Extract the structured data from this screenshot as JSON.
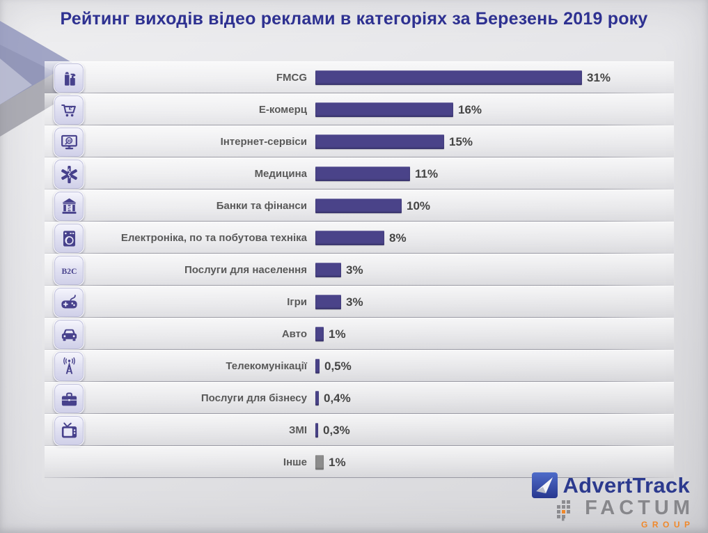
{
  "title": "Рейтинг виходів відео реклами в категоріях за Березень 2019 року",
  "chart_data": {
    "type": "bar",
    "orientation": "horizontal",
    "title": "Рейтинг виходів відео реклами в категоріях за Березень 2019 року",
    "unit": "%",
    "xlim": [
      0,
      33
    ],
    "grid": "row-separator-lines",
    "legend": "none",
    "categories": [
      "FMCG",
      "Е-комерц",
      "Інтернет-сервіси",
      "Медицина",
      "Банки та фінанси",
      "Електроніка, по та побутова техніка",
      "Послуги для населення",
      "Ігри",
      "Авто",
      "Телекомунікації",
      "Послуги для бізнесу",
      "ЗМІ",
      "Інше"
    ],
    "values": [
      31,
      16,
      15,
      11,
      10,
      8,
      3,
      3,
      1,
      0.5,
      0.4,
      0.3,
      1
    ],
    "value_labels": [
      "31%",
      "16%",
      "15%",
      "11%",
      "10%",
      "8%",
      "3%",
      "3%",
      "1%",
      "0,5%",
      "0,4%",
      "0,3%",
      "1%"
    ],
    "icons": [
      "fmcg-products-icon",
      "ecommerce-cart-icon",
      "internet-services-icon",
      "medicine-icon",
      "bank-finance-icon",
      "home-appliances-icon",
      "b2c-icon",
      "games-gamepad-icon",
      "auto-car-icon",
      "telecom-tower-icon",
      "business-briefcase-icon",
      "media-tv-icon",
      ""
    ],
    "bar_colors": [
      "#4a4389",
      "#4a4389",
      "#4a4389",
      "#4a4389",
      "#4a4389",
      "#4a4389",
      "#4a4389",
      "#4a4389",
      "#4a4389",
      "#4a4389",
      "#4a4389",
      "#4a4389",
      "#8c8c8c"
    ]
  },
  "footer": {
    "brand_primary": "AdvertTrack",
    "brand_secondary": "FACTUM",
    "brand_secondary_sub": "GROUP"
  },
  "colors": {
    "accent_bar": "#4a4389",
    "muted_bar": "#8c8c8c",
    "title_text": "#2e3191",
    "category_text": "#595959",
    "value_text": "#454545",
    "brand_blue": "#2c3a8e",
    "brand_gray": "#87878b",
    "brand_orange": "#f0882a"
  }
}
